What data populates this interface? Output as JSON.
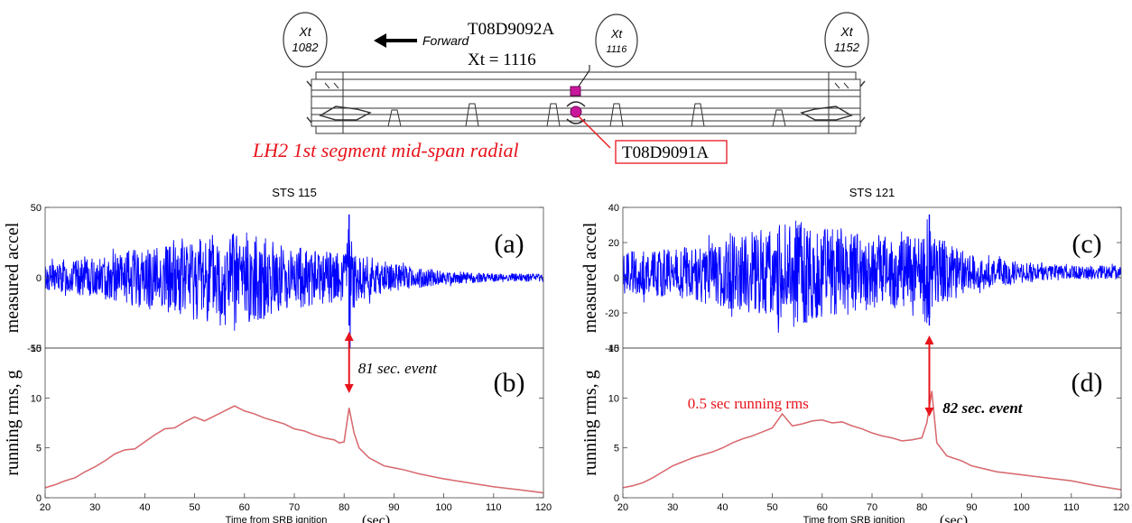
{
  "diagram": {
    "stations": [
      {
        "label": "Xt",
        "value": "1082"
      },
      {
        "label": "Xt",
        "value": "1116"
      },
      {
        "label": "Xt",
        "value": "1152"
      }
    ],
    "forward_label": "Forward",
    "sensor_top": "T08D9092A",
    "sensor_top_xt": "Xt = 1116",
    "caption": "LH2 1st segment mid-span radial",
    "sensor_bottom": "T08D9091A",
    "colors": {
      "caption": "#e8141c",
      "sensor_marker": "#c9179c",
      "structure": "#333333"
    }
  },
  "chart_data": [
    {
      "type": "line",
      "title": "STS 115",
      "panel_label": "(a)",
      "ylabel": "measured accel",
      "xlim": [
        20,
        120
      ],
      "ylim": [
        -50,
        50
      ],
      "yticks": [
        "50",
        "0",
        "-50"
      ],
      "ytick_values": [
        50,
        0,
        -50
      ],
      "series": [
        {
          "x": [
            20,
            30,
            40,
            50,
            55,
            60,
            70,
            80,
            81,
            82,
            90,
            100,
            110,
            120
          ],
          "envelope": [
            10,
            14,
            22,
            30,
            34,
            33,
            22,
            18,
            44,
            18,
            10,
            5,
            3,
            3
          ]
        }
      ],
      "color": "#0000ff"
    },
    {
      "type": "line",
      "title": "",
      "panel_label": "(b)",
      "ylabel": "running rms, g",
      "xlabel": "Time from SRB ignition (sec)",
      "xlim": [
        20,
        120
      ],
      "ylim": [
        0,
        15
      ],
      "xticks": [
        20,
        30,
        40,
        50,
        60,
        70,
        80,
        90,
        100,
        110,
        120
      ],
      "yticks": [
        0,
        5,
        10,
        15
      ],
      "annotation": "81 sec. event",
      "event_x": 81,
      "series": [
        {
          "x": [
            20,
            22,
            24,
            26,
            28,
            30,
            32,
            34,
            36,
            38,
            40,
            42,
            44,
            46,
            48,
            50,
            52,
            54,
            56,
            58,
            60,
            62,
            64,
            66,
            68,
            70,
            72,
            74,
            76,
            78,
            79,
            80,
            81,
            82,
            83,
            85,
            88,
            90,
            92,
            95,
            100,
            105,
            110,
            115,
            120
          ],
          "values": [
            1.0,
            1.3,
            1.7,
            2.0,
            2.6,
            3.1,
            3.7,
            4.4,
            4.8,
            4.9,
            5.6,
            6.3,
            6.9,
            7.0,
            7.6,
            8.1,
            7.7,
            8.2,
            8.7,
            9.2,
            8.7,
            8.4,
            8.0,
            7.7,
            7.4,
            6.9,
            6.7,
            6.3,
            6.0,
            5.8,
            5.5,
            5.6,
            9.0,
            6.5,
            5.0,
            4.0,
            3.2,
            3.0,
            2.8,
            2.4,
            1.9,
            1.5,
            1.1,
            0.8,
            0.5
          ]
        }
      ],
      "color": "#e06666"
    },
    {
      "type": "line",
      "title": "STS 121",
      "panel_label": "(c)",
      "ylabel": "measured accel",
      "xlim": [
        20,
        120
      ],
      "ylim": [
        -40,
        40
      ],
      "yticks": [
        40,
        20,
        0,
        -20,
        -40
      ],
      "series": [
        {
          "x": [
            20,
            30,
            40,
            50,
            55,
            60,
            70,
            80,
            81,
            82,
            90,
            100,
            110,
            120
          ],
          "envelope": [
            12,
            14,
            20,
            26,
            30,
            27,
            22,
            20,
            34,
            22,
            10,
            6,
            4,
            4
          ]
        }
      ],
      "color": "#0000ff"
    },
    {
      "type": "line",
      "title": "",
      "panel_label": "(d)",
      "ylabel": "running rms, g",
      "xlabel": "Time from SRB ignition (sec)",
      "xlim": [
        20,
        120
      ],
      "ylim": [
        0,
        15
      ],
      "xticks": [
        20,
        30,
        40,
        50,
        60,
        70,
        80,
        90,
        100,
        110,
        120
      ],
      "yticks": [
        0,
        5,
        10,
        15
      ],
      "annotation": "82 sec. event",
      "annotation_red": "0.5 sec running rms",
      "event_x": 82,
      "series": [
        {
          "x": [
            20,
            22,
            24,
            26,
            28,
            30,
            32,
            34,
            36,
            38,
            40,
            42,
            44,
            46,
            48,
            50,
            52,
            54,
            56,
            58,
            60,
            62,
            64,
            66,
            68,
            70,
            72,
            74,
            76,
            78,
            80,
            81,
            82,
            83,
            85,
            88,
            90,
            95,
            100,
            105,
            110,
            115,
            120
          ],
          "values": [
            1.0,
            1.2,
            1.5,
            2.0,
            2.6,
            3.2,
            3.6,
            4.0,
            4.3,
            4.6,
            5.0,
            5.5,
            5.9,
            6.2,
            6.6,
            7.0,
            8.4,
            7.2,
            7.4,
            7.7,
            7.8,
            7.5,
            7.6,
            7.2,
            6.9,
            6.5,
            6.2,
            6.0,
            5.7,
            5.8,
            6.0,
            7.5,
            10.7,
            5.5,
            4.2,
            3.7,
            3.2,
            2.6,
            2.3,
            2.0,
            1.7,
            1.2,
            0.8
          ]
        }
      ],
      "color": "#e06666"
    }
  ]
}
